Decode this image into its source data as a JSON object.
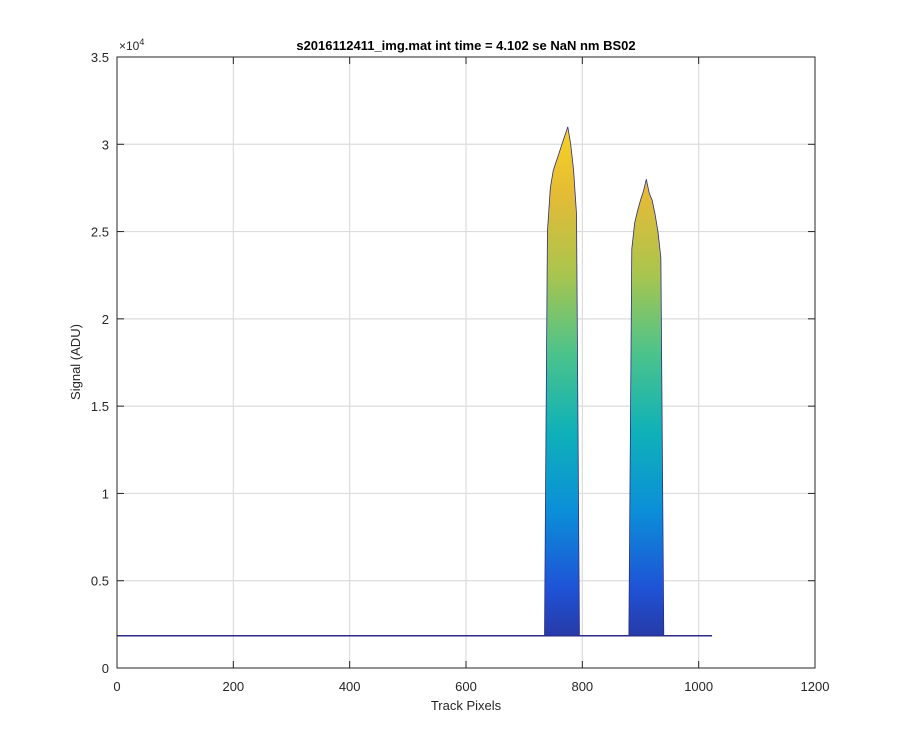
{
  "chart_data": {
    "type": "area",
    "title": "s2016112411_img.mat int time = 4.102 se  NaN nm BS02",
    "xlabel": "Track Pixels",
    "ylabel": "Signal (ADU)",
    "xlim": [
      0,
      1200
    ],
    "ylim": [
      0,
      35000
    ],
    "y_exponent_label": "×10",
    "y_exponent_power": "4",
    "x_ticks": [
      0,
      200,
      400,
      600,
      800,
      1000,
      1200
    ],
    "x_tick_labels": [
      "0",
      "200",
      "400",
      "600",
      "800",
      "1000",
      "1200"
    ],
    "y_ticks": [
      0,
      5000,
      10000,
      15000,
      20000,
      25000,
      30000,
      35000
    ],
    "y_tick_labels": [
      "0",
      "0.5",
      "1",
      "1.5",
      "2",
      "2.5",
      "3",
      "3.5"
    ],
    "grid": true,
    "baseline": 1850,
    "baseline_x_range": [
      0,
      1023
    ],
    "series": [
      {
        "x": [
          735,
          740,
          745,
          750,
          755,
          760,
          765,
          770,
          775,
          780,
          785,
          790,
          795
        ],
        "y": [
          2000,
          25000,
          27500,
          28500,
          29000,
          29500,
          30000,
          30500,
          31000,
          30000,
          28500,
          26000,
          2000
        ]
      },
      {
        "x": [
          880,
          885,
          890,
          895,
          900,
          905,
          910,
          915,
          920,
          925,
          930,
          935,
          940
        ],
        "y": [
          2000,
          24000,
          25500,
          26200,
          26800,
          27300,
          28000,
          27200,
          26800,
          26000,
          25000,
          23500,
          2000
        ]
      }
    ],
    "colormap": [
      "#2c2a86",
      "#1f52d6",
      "#0b8fd8",
      "#0fb1b8",
      "#4cc38b",
      "#a9c54e",
      "#e4bb36",
      "#f9d71f"
    ]
  }
}
